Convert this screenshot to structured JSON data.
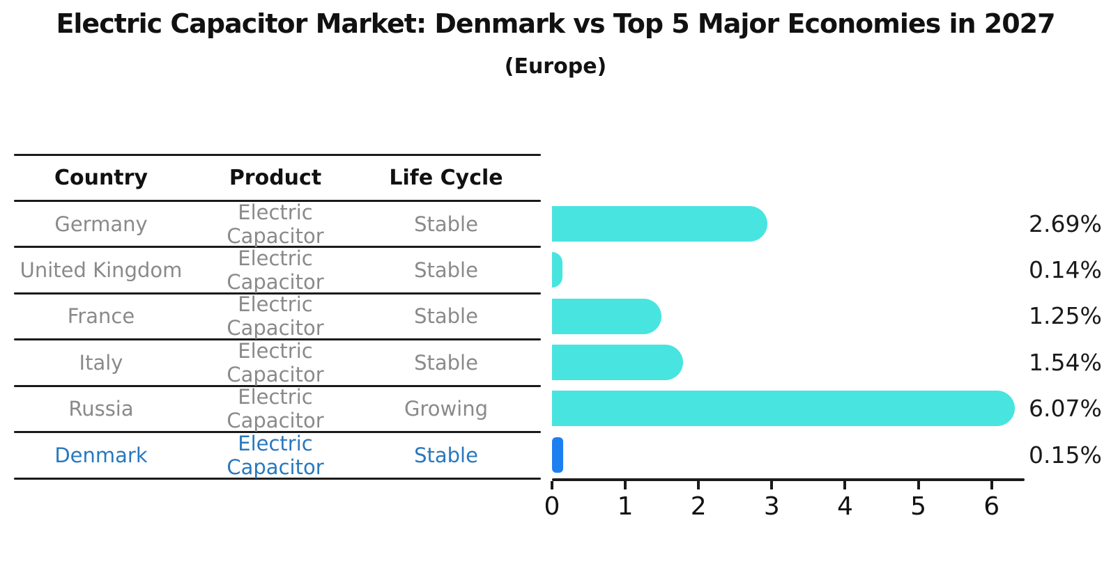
{
  "page": {
    "title": "Electric Capacitor Market: Denmark vs Top 5 Major Economies in 2027",
    "subtitle": "(Europe)"
  },
  "table": {
    "headers": [
      "Country",
      "Product",
      "Life Cycle"
    ],
    "rows": [
      {
        "country": "Germany",
        "product": "Electric Capacitor",
        "life_cycle": "Stable"
      },
      {
        "country": "United Kingdom",
        "product": "Electric Capacitor",
        "life_cycle": "Stable"
      },
      {
        "country": "France",
        "product": "Electric Capacitor",
        "life_cycle": "Stable"
      },
      {
        "country": "Italy",
        "product": "Electric Capacitor",
        "life_cycle": "Stable"
      },
      {
        "country": "Russia",
        "product": "Electric Capacitor",
        "life_cycle": "Growing"
      },
      {
        "country": "Denmark",
        "product": "Electric Capacitor",
        "life_cycle": "Stable"
      }
    ],
    "highlight_row": "Denmark"
  },
  "chart_data": {
    "type": "bar",
    "orientation": "horizontal",
    "title": "Electric Capacitor Market: Denmark vs Top 5 Major Economies in 2027",
    "subtitle": "(Europe)",
    "categories": [
      "Germany",
      "United Kingdom",
      "France",
      "Italy",
      "Russia",
      "Denmark"
    ],
    "values": [
      2.69,
      0.14,
      1.25,
      1.54,
      6.07,
      0.15
    ],
    "labels": [
      "2.69%",
      "0.14%",
      "1.25%",
      "1.54%",
      "6.07%",
      "0.15%"
    ],
    "xlim": [
      0,
      6.45
    ],
    "xticks": [
      "0",
      "1",
      "2",
      "3",
      "4",
      "5",
      "6"
    ],
    "xlabel": "",
    "ylabel": "",
    "grid": false,
    "legend": false,
    "bar_color": "#48e4e0",
    "highlight_color": "#1e80f0",
    "highlight_index": 5,
    "value_unit": "%"
  }
}
